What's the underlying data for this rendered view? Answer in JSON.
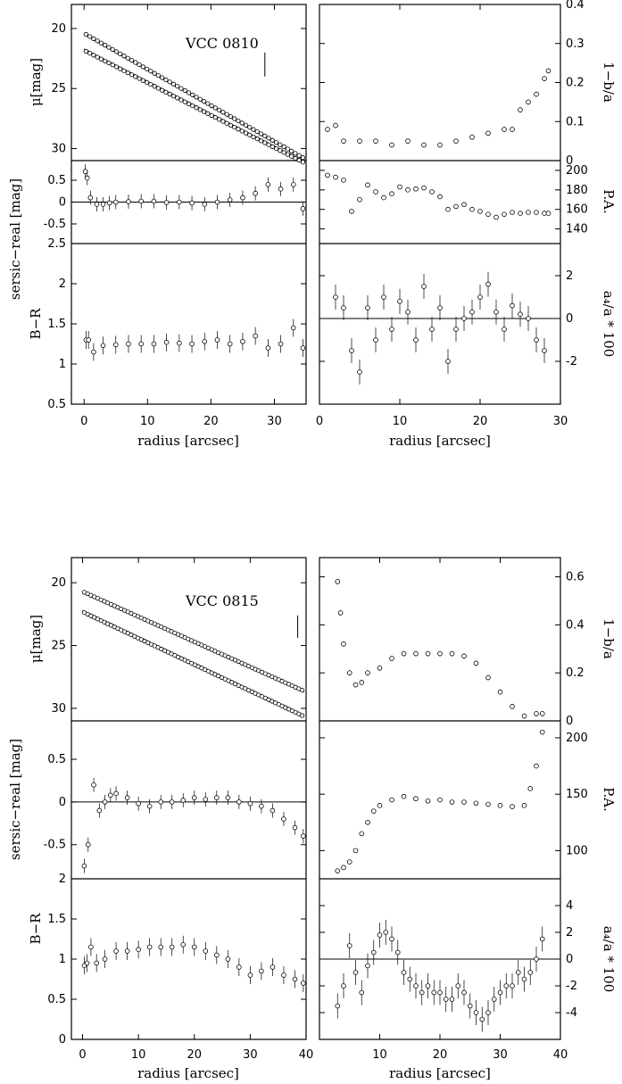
{
  "chart_data": [
    {
      "type": "scatter",
      "galaxy": "VCC 0810",
      "xlabel": "radius [arcsec]",
      "left_xlim": [
        -2,
        35
      ],
      "right_xlim": [
        0,
        30
      ],
      "left_xticks": [
        "0",
        "10",
        "20",
        "30"
      ],
      "right_xticks": [
        "0",
        "10",
        "20",
        "30"
      ],
      "mu": {
        "ylabel": "μ[mag]",
        "ylim": [
          31,
          18
        ],
        "yticks": [
          "20",
          "25",
          "30"
        ],
        "marker_x": 28.5,
        "marker_range": [
          22.0,
          24.0
        ],
        "upper": {
          "start": 20.5,
          "slope": 0.3
        },
        "lower": {
          "start": 21.7,
          "slope": 0.27
        }
      },
      "ellipticity": {
        "ylabel": "1−b/a",
        "ylim": [
          0,
          0.4
        ],
        "yticks": [
          "0",
          "0.1",
          "0.2",
          "0.3",
          "0.4"
        ],
        "x": [
          1,
          2,
          3,
          5,
          7,
          9,
          11,
          13,
          15,
          17,
          19,
          21,
          23,
          24,
          25,
          26,
          27,
          28,
          28.5
        ],
        "y": [
          0.08,
          0.09,
          0.05,
          0.05,
          0.05,
          0.04,
          0.05,
          0.04,
          0.04,
          0.05,
          0.06,
          0.07,
          0.08,
          0.08,
          0.13,
          0.15,
          0.17,
          0.21,
          0.23
        ]
      },
      "residual": {
        "ylabel": "sersic−real [mag]",
        "ylim": [
          -0.95,
          0.95
        ],
        "yticks": [
          "0.5",
          "0",
          "-0.5"
        ],
        "x": [
          0.2,
          0.5,
          1,
          2,
          3,
          4,
          5,
          7,
          9,
          11,
          13,
          15,
          17,
          19,
          21,
          23,
          25,
          27,
          29,
          31,
          33,
          34.5
        ],
        "y": [
          0.7,
          0.55,
          0.1,
          -0.05,
          -0.05,
          -0.02,
          0.0,
          0.01,
          0.02,
          0.02,
          -0.01,
          0.0,
          -0.02,
          -0.05,
          0.0,
          0.05,
          0.1,
          0.2,
          0.4,
          0.3,
          0.4,
          -0.15
        ]
      },
      "pa": {
        "ylabel": "P.A.",
        "ylim": [
          125,
          210
        ],
        "yticks": [
          "200",
          "180",
          "160",
          "140"
        ],
        "x": [
          1,
          2,
          3,
          4,
          5,
          6,
          7,
          8,
          9,
          10,
          11,
          12,
          13,
          14,
          15,
          16,
          17,
          18,
          19,
          20,
          21,
          22,
          23,
          24,
          25,
          26,
          27,
          28,
          28.5
        ],
        "y": [
          195,
          193,
          190,
          158,
          170,
          185,
          178,
          172,
          176,
          183,
          180,
          181,
          182,
          178,
          173,
          160,
          163,
          165,
          160,
          158,
          155,
          152,
          155,
          157,
          156,
          157,
          157,
          156,
          156
        ]
      },
      "color": {
        "ylabel": "B−R",
        "ylim": [
          0.5,
          2.5
        ],
        "yticks": [
          "0.5",
          "1",
          "1.5",
          "2",
          "2.5"
        ],
        "x": [
          0.3,
          0.7,
          1.5,
          3,
          5,
          7,
          9,
          11,
          13,
          15,
          17,
          19,
          21,
          23,
          25,
          27,
          29,
          31,
          33,
          34.5
        ],
        "y": [
          1.3,
          1.3,
          1.15,
          1.23,
          1.24,
          1.25,
          1.25,
          1.25,
          1.27,
          1.26,
          1.25,
          1.28,
          1.3,
          1.25,
          1.28,
          1.35,
          1.2,
          1.25,
          1.45,
          1.2
        ]
      },
      "a4": {
        "ylabel": "a₄/a * 100",
        "ylim": [
          -4,
          3.5
        ],
        "yticks": [
          "2",
          "0",
          "-2"
        ],
        "x": [
          2,
          3,
          4,
          5,
          6,
          7,
          8,
          9,
          10,
          11,
          12,
          13,
          14,
          15,
          16,
          17,
          18,
          19,
          20,
          21,
          22,
          23,
          24,
          25,
          26,
          27,
          28
        ],
        "y": [
          1,
          0.5,
          -1.5,
          -2.5,
          0.5,
          -1,
          1,
          -0.5,
          0.8,
          0.3,
          -1,
          1.5,
          -0.5,
          0.5,
          -2,
          -0.5,
          0,
          0.3,
          1,
          1.6,
          0.3,
          -0.5,
          0.6,
          0.2,
          0,
          -1,
          -1.5
        ]
      }
    },
    {
      "type": "scatter",
      "galaxy": "VCC 0815",
      "xlabel": "radius [arcsec]",
      "left_xlim": [
        -2,
        40
      ],
      "right_xlim": [
        0,
        40
      ],
      "left_xticks": [
        "0",
        "10",
        "20",
        "30",
        "40"
      ],
      "right_xticks": [
        "10",
        "20",
        "30",
        "40"
      ],
      "mu": {
        "ylabel": "μ[mag]",
        "ylim": [
          31,
          18
        ],
        "yticks": [
          "20",
          "25",
          "30"
        ],
        "marker_x": 38.5,
        "marker_range": [
          22.6,
          24.4
        ],
        "upper": {
          "start": 20.8,
          "slope": 0.2
        },
        "lower": {
          "start": 22.2,
          "slope": 0.21
        }
      },
      "ellipticity": {
        "ylabel": "1−b/a",
        "ylim": [
          0,
          0.68
        ],
        "yticks": [
          "0",
          "0.2",
          "0.4",
          "0.6"
        ],
        "x": [
          3,
          3.5,
          4,
          5,
          6,
          7,
          8,
          10,
          12,
          14,
          16,
          18,
          20,
          22,
          24,
          26,
          28,
          30,
          32,
          34,
          36,
          37
        ],
        "y": [
          0.58,
          0.45,
          0.32,
          0.2,
          0.15,
          0.16,
          0.2,
          0.22,
          0.26,
          0.28,
          0.28,
          0.28,
          0.28,
          0.28,
          0.27,
          0.24,
          0.18,
          0.12,
          0.06,
          0.02,
          0.03,
          0.03
        ]
      },
      "residual": {
        "ylabel": "sersic−real [mag]",
        "ylim": [
          -0.9,
          0.95
        ],
        "yticks": [
          "0.5",
          "0",
          "-0.5"
        ],
        "x": [
          0.3,
          1,
          2,
          3,
          4,
          5,
          6,
          8,
          10,
          12,
          14,
          16,
          18,
          20,
          22,
          24,
          26,
          28,
          30,
          32,
          34,
          36,
          38,
          39.5
        ],
        "y": [
          -0.75,
          -0.5,
          0.2,
          -0.1,
          0.0,
          0.08,
          0.1,
          0.05,
          -0.02,
          -0.05,
          0.0,
          0.0,
          0.02,
          0.05,
          0.03,
          0.05,
          0.05,
          0.0,
          -0.02,
          -0.05,
          -0.1,
          -0.2,
          -0.3,
          -0.4
        ]
      },
      "pa": {
        "ylabel": "P.A.",
        "ylim": [
          75,
          215
        ],
        "yticks": [
          "200",
          "150",
          "100"
        ],
        "x": [
          3,
          4,
          5,
          6,
          7,
          8,
          9,
          10,
          12,
          14,
          16,
          18,
          20,
          22,
          24,
          26,
          28,
          30,
          32,
          34,
          35,
          36,
          37
        ],
        "y": [
          82,
          85,
          90,
          100,
          115,
          125,
          135,
          140,
          145,
          148,
          146,
          144,
          145,
          143,
          143,
          142,
          141,
          140,
          139,
          140,
          155,
          175,
          205
        ]
      },
      "color": {
        "ylabel": "B−R",
        "ylim": [
          0,
          2
        ],
        "yticks": [
          "0",
          "0.5",
          "1",
          "1.5",
          "2"
        ],
        "x": [
          0.3,
          0.8,
          1.5,
          2.5,
          4,
          6,
          8,
          10,
          12,
          14,
          16,
          18,
          20,
          22,
          24,
          26,
          28,
          30,
          32,
          34,
          36,
          38,
          39.5
        ],
        "y": [
          0.92,
          0.95,
          1.15,
          0.95,
          1.0,
          1.1,
          1.1,
          1.12,
          1.15,
          1.15,
          1.15,
          1.18,
          1.15,
          1.1,
          1.05,
          1.0,
          0.9,
          0.8,
          0.85,
          0.9,
          0.8,
          0.75,
          0.7
        ]
      },
      "a4": {
        "ylabel": "a₄/a * 100",
        "ylim": [
          -6,
          6
        ],
        "yticks": [
          "4",
          "2",
          "0",
          "-2",
          "-4"
        ],
        "x": [
          3,
          4,
          5,
          6,
          7,
          8,
          9,
          10,
          11,
          12,
          13,
          14,
          15,
          16,
          17,
          18,
          19,
          20,
          21,
          22,
          23,
          24,
          25,
          26,
          27,
          28,
          29,
          30,
          31,
          32,
          33,
          34,
          35,
          36,
          37
        ],
        "y": [
          -3.5,
          -2,
          1,
          -1,
          -2.5,
          -0.5,
          0.5,
          1.8,
          2,
          1.5,
          0.5,
          -1,
          -1.5,
          -2,
          -2.5,
          -2,
          -2.5,
          -2.5,
          -3,
          -3,
          -2,
          -2.5,
          -3.5,
          -4,
          -4.5,
          -4,
          -3,
          -2.5,
          -2,
          -2,
          -1,
          -1.5,
          -1,
          0,
          1.5
        ]
      }
    }
  ]
}
